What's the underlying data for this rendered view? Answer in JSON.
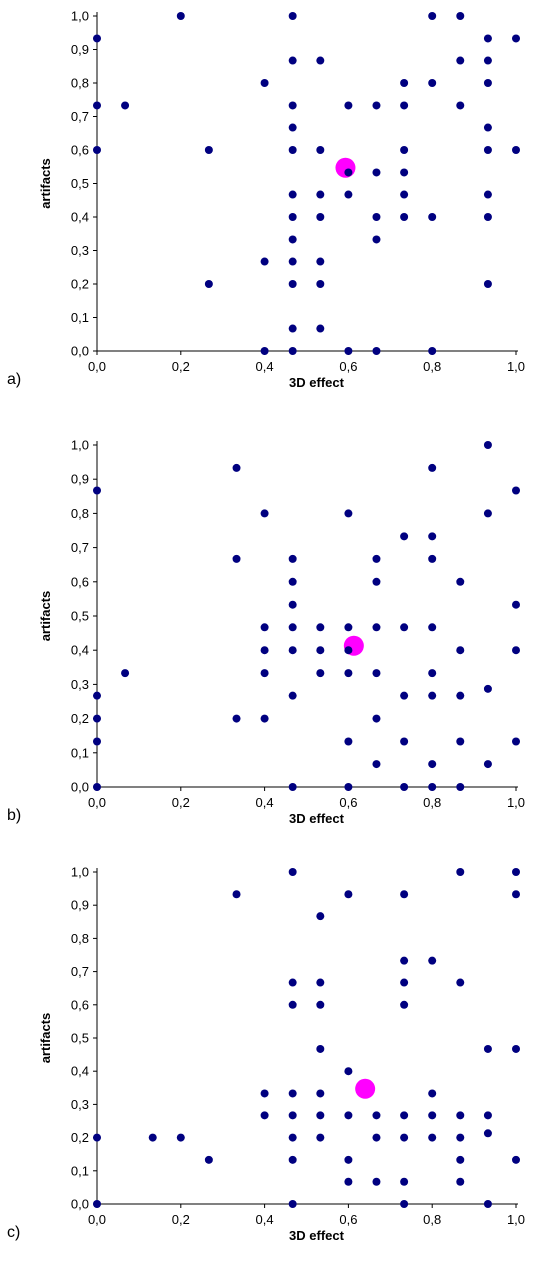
{
  "chart_data": [
    {
      "type": "scatter",
      "panel_label": "a)",
      "xlabel": "3D effect",
      "ylabel": "artifacts",
      "xlim": [
        0,
        1
      ],
      "ylim": [
        0,
        1
      ],
      "x_ticks": [
        "0,0",
        "0,2",
        "0,4",
        "0,6",
        "0,8",
        "1,0"
      ],
      "y_ticks": [
        "0,0",
        "0,1",
        "0,2",
        "0,3",
        "0,4",
        "0,5",
        "0,6",
        "0,7",
        "0,8",
        "0,9",
        "1,0"
      ],
      "grid": false,
      "colors": {
        "points": "#000080",
        "mean": "#ff00ff"
      },
      "mean_point": [
        0.593,
        0.547
      ],
      "points": [
        [
          0.0,
          0.933
        ],
        [
          0.0,
          0.733
        ],
        [
          0.0,
          0.6
        ],
        [
          0.067,
          0.733
        ],
        [
          0.2,
          1.0
        ],
        [
          0.267,
          0.6
        ],
        [
          0.267,
          0.2
        ],
        [
          0.4,
          0.8
        ],
        [
          0.4,
          0.267
        ],
        [
          0.4,
          0.0
        ],
        [
          0.467,
          1.0
        ],
        [
          0.467,
          0.867
        ],
        [
          0.467,
          0.733
        ],
        [
          0.467,
          0.667
        ],
        [
          0.467,
          0.6
        ],
        [
          0.467,
          0.467
        ],
        [
          0.467,
          0.4
        ],
        [
          0.467,
          0.333
        ],
        [
          0.467,
          0.267
        ],
        [
          0.467,
          0.2
        ],
        [
          0.467,
          0.067
        ],
        [
          0.467,
          0.0
        ],
        [
          0.533,
          0.867
        ],
        [
          0.533,
          0.6
        ],
        [
          0.533,
          0.467
        ],
        [
          0.533,
          0.4
        ],
        [
          0.533,
          0.267
        ],
        [
          0.533,
          0.2
        ],
        [
          0.533,
          0.067
        ],
        [
          0.6,
          0.733
        ],
        [
          0.6,
          0.533
        ],
        [
          0.6,
          0.467
        ],
        [
          0.6,
          0.0
        ],
        [
          0.667,
          0.733
        ],
        [
          0.667,
          0.533
        ],
        [
          0.667,
          0.4
        ],
        [
          0.667,
          0.333
        ],
        [
          0.667,
          0.0
        ],
        [
          0.733,
          0.8
        ],
        [
          0.733,
          0.733
        ],
        [
          0.733,
          0.6
        ],
        [
          0.733,
          0.533
        ],
        [
          0.733,
          0.467
        ],
        [
          0.733,
          0.4
        ],
        [
          0.8,
          1.0
        ],
        [
          0.8,
          0.8
        ],
        [
          0.8,
          0.4
        ],
        [
          0.8,
          0.0
        ],
        [
          0.867,
          1.0
        ],
        [
          0.867,
          0.867
        ],
        [
          0.867,
          0.733
        ],
        [
          0.933,
          0.933
        ],
        [
          0.933,
          0.867
        ],
        [
          0.933,
          0.8
        ],
        [
          0.933,
          0.667
        ],
        [
          0.933,
          0.6
        ],
        [
          0.933,
          0.467
        ],
        [
          0.933,
          0.4
        ],
        [
          0.933,
          0.2
        ],
        [
          1.0,
          0.933
        ],
        [
          1.0,
          0.6
        ]
      ]
    },
    {
      "type": "scatter",
      "panel_label": "b)",
      "xlabel": "3D effect",
      "ylabel": "artifacts",
      "xlim": [
        0,
        1
      ],
      "ylim": [
        0,
        1
      ],
      "x_ticks": [
        "0,0",
        "0,2",
        "0,4",
        "0,6",
        "0,8",
        "1,0"
      ],
      "y_ticks": [
        "0,0",
        "0,1",
        "0,2",
        "0,3",
        "0,4",
        "0,5",
        "0,6",
        "0,7",
        "0,8",
        "0,9",
        "1,0"
      ],
      "grid": false,
      "colors": {
        "points": "#000080",
        "mean": "#ff00ff"
      },
      "mean_point": [
        0.613,
        0.413
      ],
      "points": [
        [
          0.0,
          0.867
        ],
        [
          0.0,
          0.267
        ],
        [
          0.0,
          0.2
        ],
        [
          0.0,
          0.133
        ],
        [
          0.0,
          0.0
        ],
        [
          0.067,
          0.333
        ],
        [
          0.333,
          0.933
        ],
        [
          0.333,
          0.667
        ],
        [
          0.333,
          0.2
        ],
        [
          0.4,
          0.8
        ],
        [
          0.4,
          0.467
        ],
        [
          0.4,
          0.4
        ],
        [
          0.4,
          0.333
        ],
        [
          0.4,
          0.2
        ],
        [
          0.467,
          0.667
        ],
        [
          0.467,
          0.6
        ],
        [
          0.467,
          0.533
        ],
        [
          0.467,
          0.467
        ],
        [
          0.467,
          0.4
        ],
        [
          0.467,
          0.267
        ],
        [
          0.467,
          0.0
        ],
        [
          0.533,
          0.467
        ],
        [
          0.533,
          0.4
        ],
        [
          0.533,
          0.333
        ],
        [
          0.6,
          0.8
        ],
        [
          0.6,
          0.467
        ],
        [
          0.6,
          0.4
        ],
        [
          0.6,
          0.333
        ],
        [
          0.6,
          0.133
        ],
        [
          0.6,
          0.0
        ],
        [
          0.667,
          0.667
        ],
        [
          0.667,
          0.6
        ],
        [
          0.667,
          0.467
        ],
        [
          0.667,
          0.333
        ],
        [
          0.667,
          0.2
        ],
        [
          0.667,
          0.067
        ],
        [
          0.733,
          0.733
        ],
        [
          0.733,
          0.467
        ],
        [
          0.733,
          0.267
        ],
        [
          0.733,
          0.133
        ],
        [
          0.733,
          0.0
        ],
        [
          0.8,
          0.933
        ],
        [
          0.8,
          0.733
        ],
        [
          0.8,
          0.667
        ],
        [
          0.8,
          0.467
        ],
        [
          0.8,
          0.333
        ],
        [
          0.8,
          0.267
        ],
        [
          0.8,
          0.067
        ],
        [
          0.8,
          0.0
        ],
        [
          0.867,
          0.6
        ],
        [
          0.867,
          0.4
        ],
        [
          0.867,
          0.267
        ],
        [
          0.867,
          0.133
        ],
        [
          0.867,
          0.0
        ],
        [
          0.933,
          1.0
        ],
        [
          0.933,
          0.8
        ],
        [
          0.933,
          0.287
        ],
        [
          0.933,
          0.067
        ],
        [
          1.0,
          0.867
        ],
        [
          1.0,
          0.533
        ],
        [
          1.0,
          0.4
        ],
        [
          1.0,
          0.133
        ]
      ]
    },
    {
      "type": "scatter",
      "panel_label": "c)",
      "xlabel": "3D effect",
      "ylabel": "artifacts",
      "xlim": [
        0,
        1
      ],
      "ylim": [
        0,
        1
      ],
      "x_ticks": [
        "0,0",
        "0,2",
        "0,4",
        "0,6",
        "0,8",
        "1,0"
      ],
      "y_ticks": [
        "0,0",
        "0,1",
        "0,2",
        "0,3",
        "0,4",
        "0,5",
        "0,6",
        "0,7",
        "0,8",
        "0,9",
        "1,0"
      ],
      "grid": false,
      "colors": {
        "points": "#000080",
        "mean": "#ff00ff"
      },
      "mean_point": [
        0.64,
        0.347
      ],
      "points": [
        [
          0.0,
          0.2
        ],
        [
          0.0,
          0.0
        ],
        [
          0.133,
          0.2
        ],
        [
          0.2,
          0.2
        ],
        [
          0.267,
          0.133
        ],
        [
          0.333,
          0.933
        ],
        [
          0.4,
          0.333
        ],
        [
          0.4,
          0.267
        ],
        [
          0.467,
          1.0
        ],
        [
          0.467,
          0.667
        ],
        [
          0.467,
          0.6
        ],
        [
          0.467,
          0.333
        ],
        [
          0.467,
          0.267
        ],
        [
          0.467,
          0.2
        ],
        [
          0.467,
          0.133
        ],
        [
          0.467,
          0.0
        ],
        [
          0.533,
          0.867
        ],
        [
          0.533,
          0.667
        ],
        [
          0.533,
          0.6
        ],
        [
          0.533,
          0.467
        ],
        [
          0.533,
          0.333
        ],
        [
          0.533,
          0.267
        ],
        [
          0.533,
          0.2
        ],
        [
          0.6,
          0.933
        ],
        [
          0.6,
          0.4
        ],
        [
          0.6,
          0.267
        ],
        [
          0.6,
          0.133
        ],
        [
          0.6,
          0.067
        ],
        [
          0.667,
          0.267
        ],
        [
          0.667,
          0.2
        ],
        [
          0.667,
          0.067
        ],
        [
          0.733,
          0.933
        ],
        [
          0.733,
          0.733
        ],
        [
          0.733,
          0.667
        ],
        [
          0.733,
          0.6
        ],
        [
          0.733,
          0.267
        ],
        [
          0.733,
          0.2
        ],
        [
          0.733,
          0.067
        ],
        [
          0.733,
          0.0
        ],
        [
          0.8,
          0.733
        ],
        [
          0.8,
          0.333
        ],
        [
          0.8,
          0.267
        ],
        [
          0.8,
          0.2
        ],
        [
          0.867,
          1.0
        ],
        [
          0.867,
          0.667
        ],
        [
          0.867,
          0.267
        ],
        [
          0.867,
          0.2
        ],
        [
          0.867,
          0.133
        ],
        [
          0.867,
          0.067
        ],
        [
          0.933,
          0.467
        ],
        [
          0.933,
          0.267
        ],
        [
          0.933,
          0.213
        ],
        [
          0.933,
          0.0
        ],
        [
          1.0,
          1.0
        ],
        [
          1.0,
          0.933
        ],
        [
          1.0,
          0.467
        ],
        [
          1.0,
          0.133
        ]
      ]
    }
  ]
}
